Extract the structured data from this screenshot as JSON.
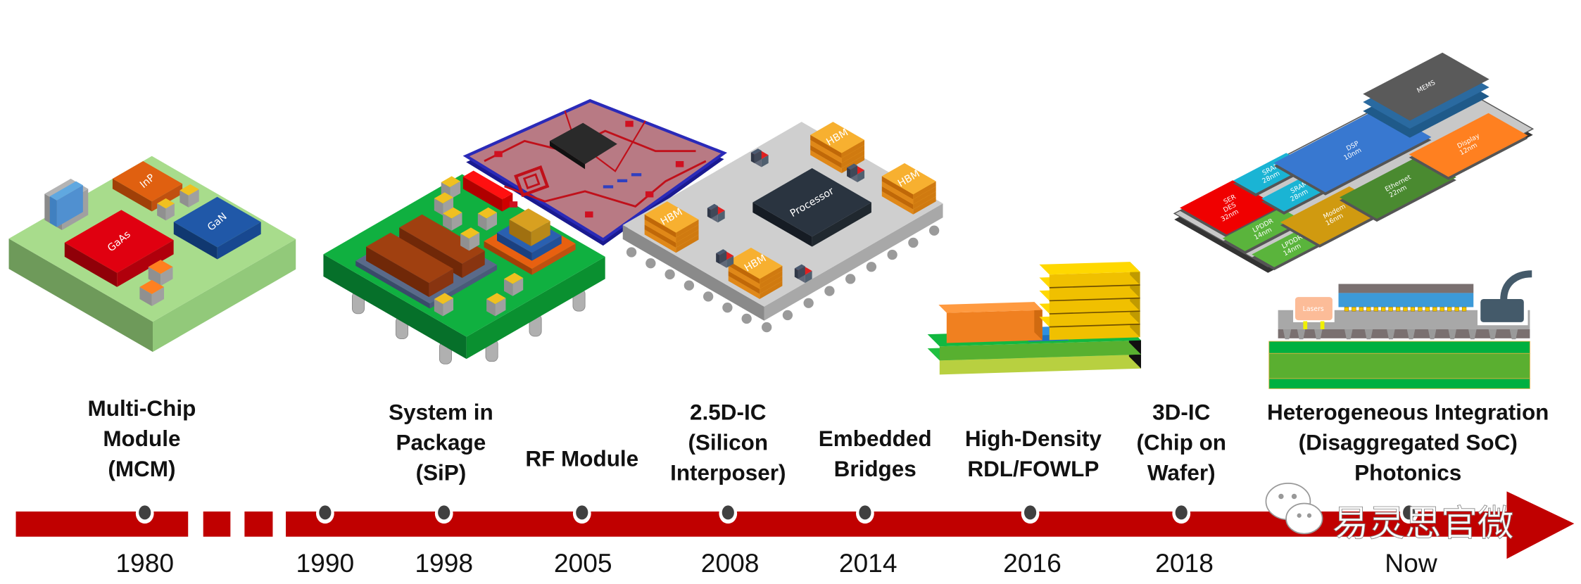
{
  "timeline": [
    {
      "year": "1980",
      "label": [
        "Multi-Chip",
        "Module",
        "(MCM)"
      ]
    },
    {
      "year": "1990",
      "label": []
    },
    {
      "year": "1998",
      "label": [
        "System in",
        "Package",
        "(SiP)"
      ]
    },
    {
      "year": "2005",
      "label": [
        "RF Module"
      ]
    },
    {
      "year": "2008",
      "label": [
        "2.5D-IC",
        "(Silicon",
        "Interposer)"
      ]
    },
    {
      "year": "2014",
      "label": [
        "Embedded",
        "Bridges"
      ]
    },
    {
      "year": "2016",
      "label": [
        "High-Density",
        "RDL/FOWLP"
      ]
    },
    {
      "year": "2018",
      "label": [
        "3D-IC",
        "(Chip on",
        "Wafer)"
      ]
    },
    {
      "year": "Now",
      "label": [
        "Heterogeneous Integration",
        "(Disaggregated SoC)",
        "Photonics"
      ]
    }
  ],
  "mcm_chips": {
    "inp": "InP",
    "gaas": "GaAs",
    "gan": "GaN"
  },
  "interposer_chips": {
    "processor": "Processor",
    "hbm": "HBM"
  },
  "soc_chips": {
    "serdes": [
      "SER",
      "DES",
      "32nm"
    ],
    "lpddr1": [
      "LPDDR",
      "14nm"
    ],
    "lpddr2": [
      "LPDDR",
      "14nm"
    ],
    "sram1": [
      "SRAM",
      "28nm"
    ],
    "sram2": [
      "SRAM",
      "28nm"
    ],
    "modem": [
      "Modem",
      "16nm"
    ],
    "dsp": [
      "DSP",
      "10nm"
    ],
    "ethernet": [
      "Ethernet",
      "22nm"
    ],
    "display": [
      "Display",
      "12nm"
    ],
    "mems": [
      "MEMS"
    ]
  },
  "photonics": {
    "lasers": "Lasers"
  },
  "watermark": {
    "text": "易灵思官微",
    "icon": "wechat-icon"
  },
  "colors": {
    "arrow": "#c00000",
    "dot": "#404040"
  }
}
